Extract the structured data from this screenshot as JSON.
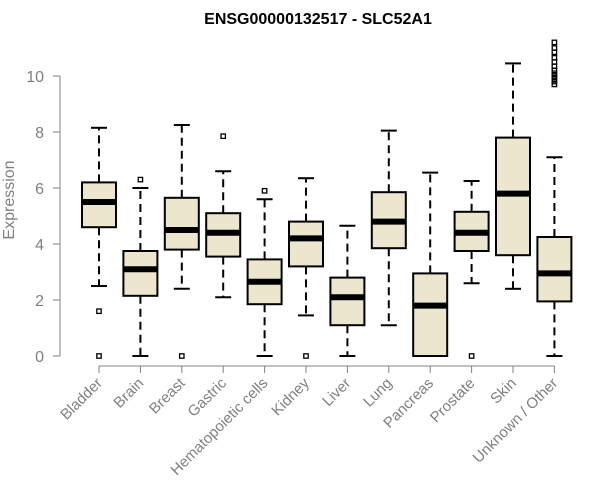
{
  "chart_data": {
    "type": "boxplot",
    "title": "ENSG00000132517 - SLC52A1",
    "xlabel": "",
    "ylabel": "Expression",
    "ylim": [
      0,
      11.3
    ],
    "yticks": [
      0,
      2,
      4,
      6,
      8,
      10
    ],
    "box_fill": "#ede6cf",
    "axis_color": "#808080",
    "categories": [
      "Bladder",
      "Brain",
      "Breast",
      "Gastric",
      "Hematopoietic cells",
      "Kidney",
      "Liver",
      "Lung",
      "Pancreas",
      "Prostate",
      "Skin",
      "Unknown / Other"
    ],
    "boxes": [
      {
        "q1": 4.6,
        "median": 5.5,
        "q3": 6.2,
        "whisker_low": 2.5,
        "whisker_high": 8.15,
        "outliers": [
          1.6,
          0
        ]
      },
      {
        "q1": 2.15,
        "median": 3.1,
        "q3": 3.75,
        "whisker_low": 0,
        "whisker_high": 6.0,
        "outliers": [
          6.3
        ]
      },
      {
        "q1": 3.8,
        "median": 4.5,
        "q3": 5.65,
        "whisker_low": 2.4,
        "whisker_high": 8.25,
        "outliers": [
          0
        ]
      },
      {
        "q1": 3.55,
        "median": 4.4,
        "q3": 5.1,
        "whisker_low": 2.1,
        "whisker_high": 6.6,
        "outliers": [
          7.85
        ]
      },
      {
        "q1": 1.85,
        "median": 2.65,
        "q3": 3.45,
        "whisker_low": 0,
        "whisker_high": 5.6,
        "outliers": [
          5.9
        ]
      },
      {
        "q1": 3.2,
        "median": 4.2,
        "q3": 4.8,
        "whisker_low": 1.45,
        "whisker_high": 6.35,
        "outliers": [
          0
        ]
      },
      {
        "q1": 1.1,
        "median": 2.1,
        "q3": 2.8,
        "whisker_low": 0,
        "whisker_high": 4.65,
        "outliers": []
      },
      {
        "q1": 3.85,
        "median": 4.8,
        "q3": 5.85,
        "whisker_low": 1.1,
        "whisker_high": 8.05,
        "outliers": []
      },
      {
        "q1": 0,
        "median": 1.8,
        "q3": 2.95,
        "whisker_low": 0,
        "whisker_high": 6.55,
        "outliers": []
      },
      {
        "q1": 3.75,
        "median": 4.4,
        "q3": 5.15,
        "whisker_low": 2.6,
        "whisker_high": 6.25,
        "outliers": [
          0
        ]
      },
      {
        "q1": 3.6,
        "median": 5.8,
        "q3": 7.8,
        "whisker_low": 2.4,
        "whisker_high": 10.45,
        "outliers": []
      },
      {
        "q1": 1.95,
        "median": 2.95,
        "q3": 4.25,
        "whisker_low": 0,
        "whisker_high": 7.1,
        "outliers": [
          9.7,
          9.8,
          9.9,
          10.0,
          10.1,
          10.2,
          10.35,
          10.5,
          10.65,
          10.85,
          11.0,
          11.2
        ]
      }
    ]
  }
}
